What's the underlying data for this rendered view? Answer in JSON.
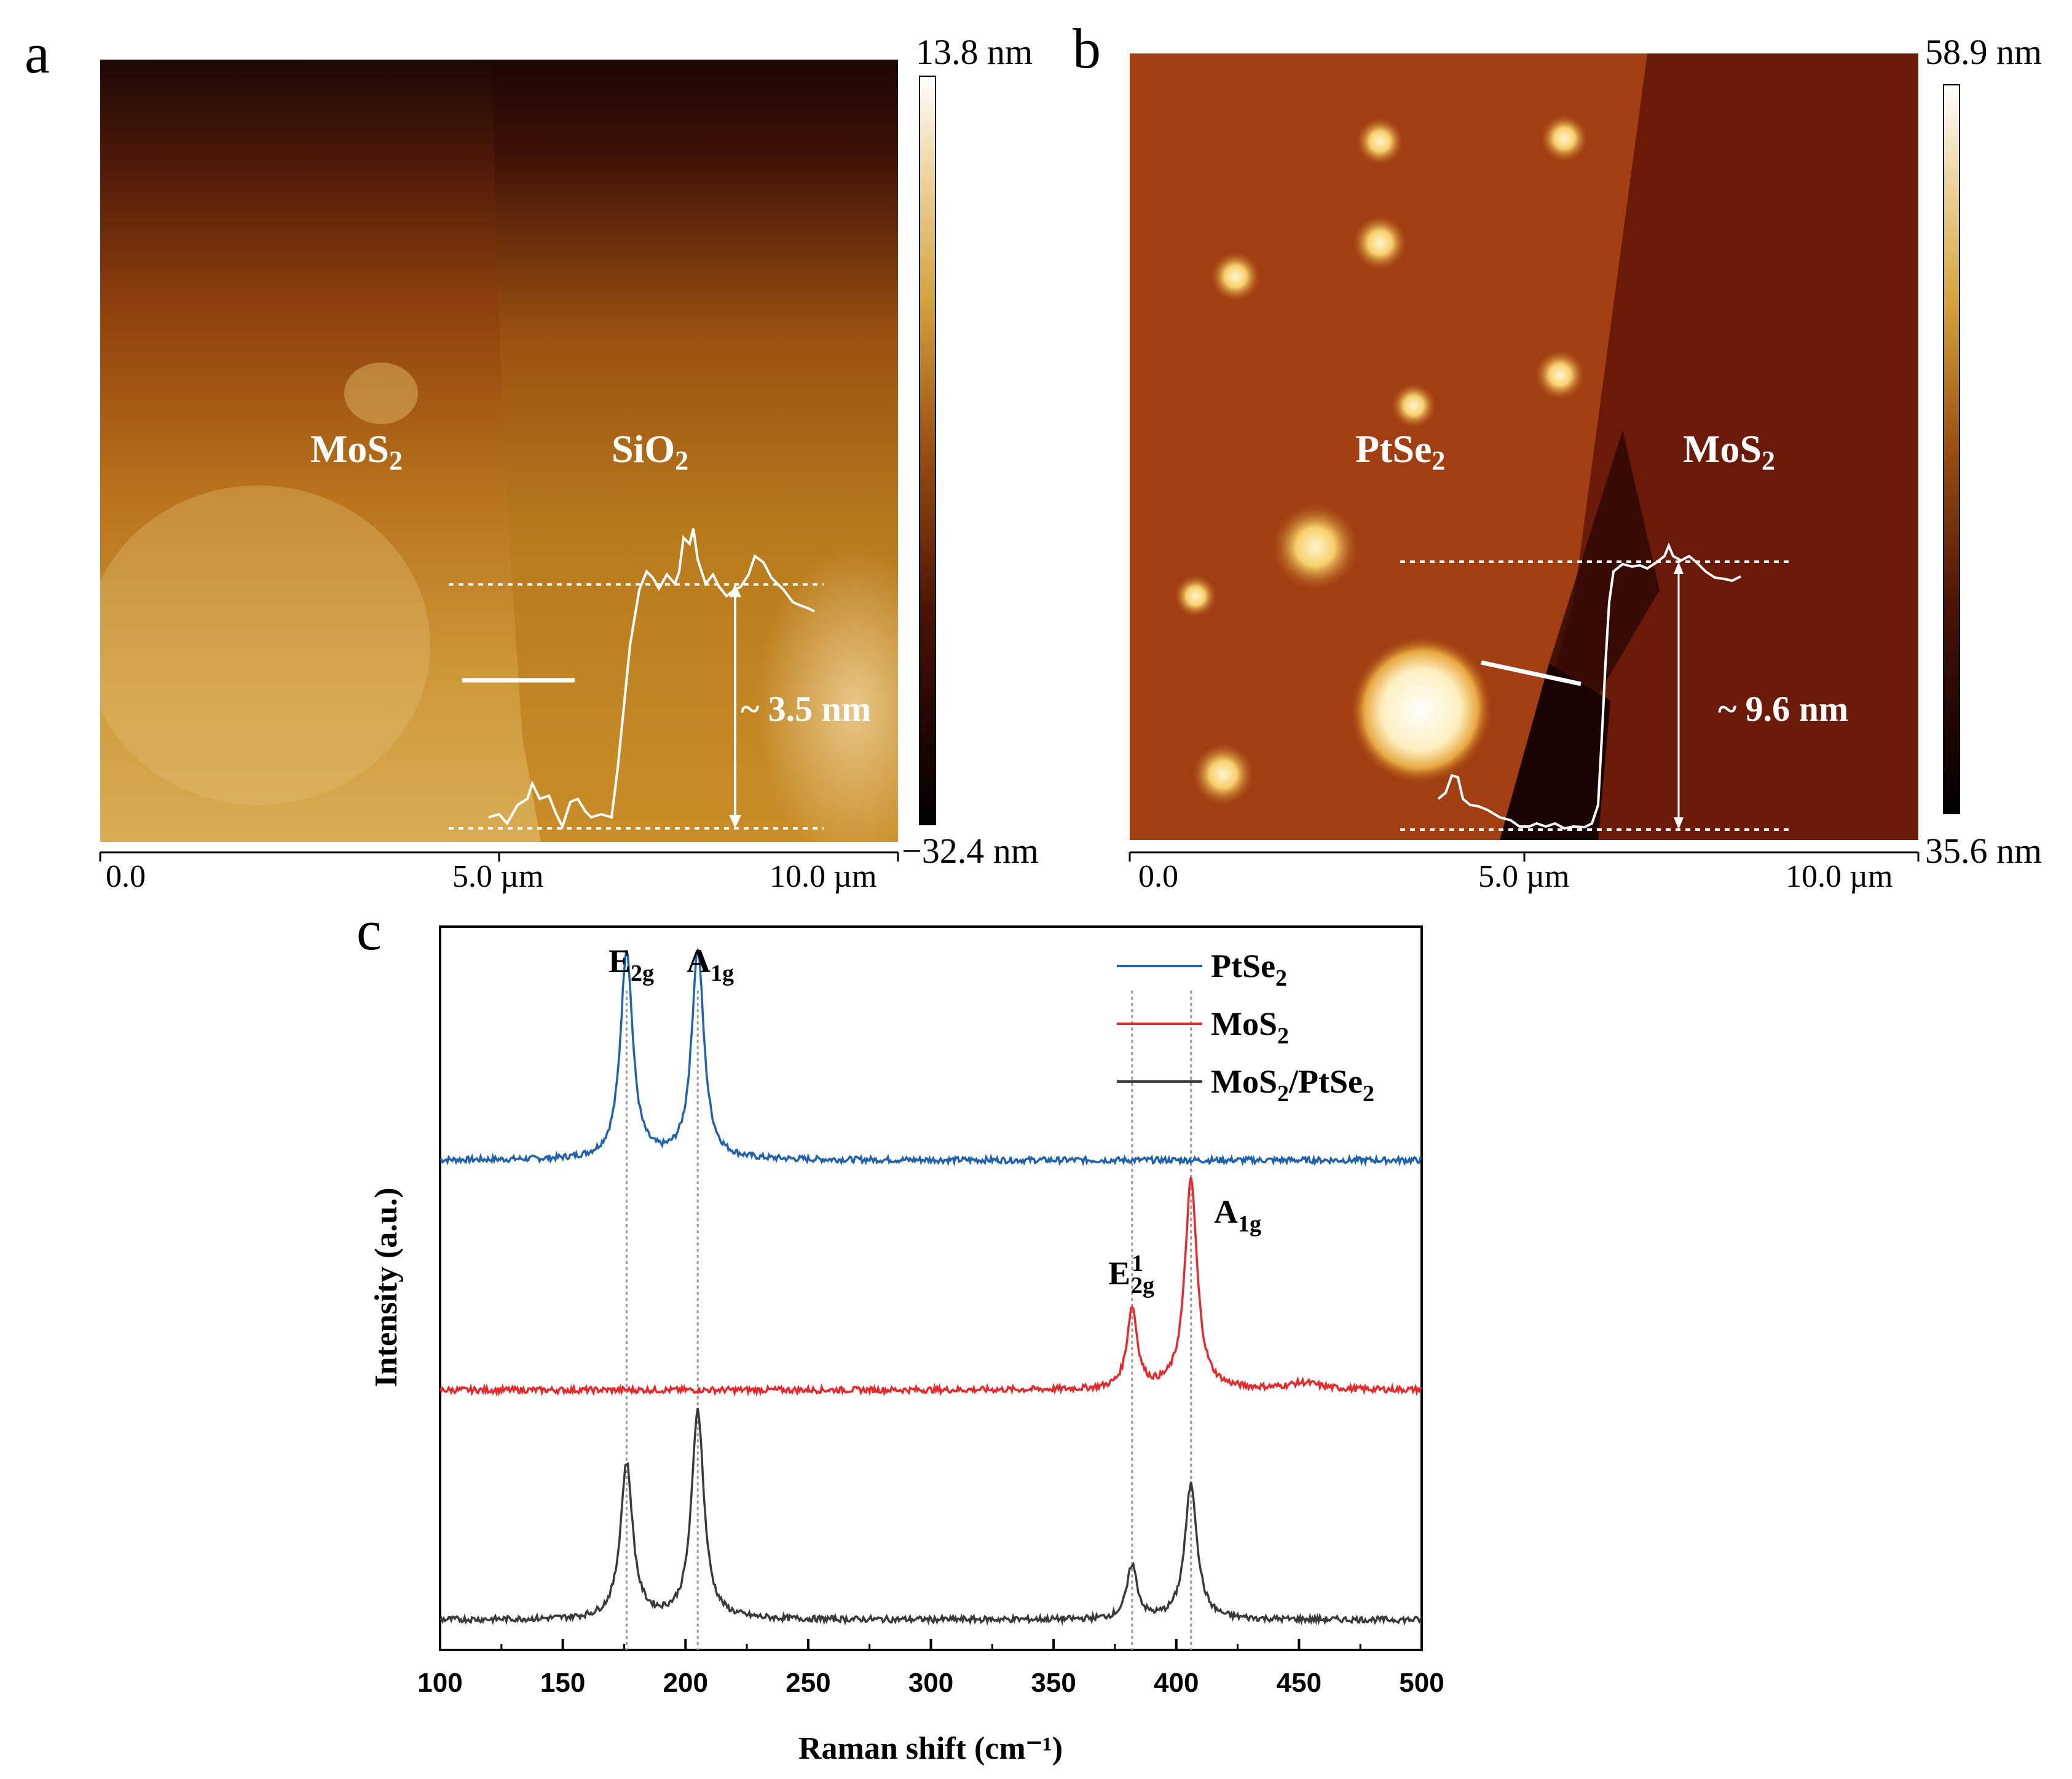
{
  "panel_a": {
    "letter": "a",
    "label_left_main": "MoS",
    "label_left_sub": "2",
    "label_right_main": "SiO",
    "label_right_sub": "2",
    "height_label": "~ 3.5 nm",
    "colorbar_max": "13.8 nm",
    "colorbar_min": "−32.4 nm",
    "axis_ticks": [
      "0.0",
      "5.0 µm",
      "10.0 µm"
    ]
  },
  "panel_b": {
    "letter": "b",
    "label_left_main": "PtSe",
    "label_left_sub": "2",
    "label_right_main": "MoS",
    "label_right_sub": "2",
    "height_label": "~ 9.6 nm",
    "colorbar_max": "58.9 nm",
    "colorbar_min": "35.6 nm",
    "axis_ticks": [
      "0.0",
      "5.0 µm",
      "10.0 µm"
    ]
  },
  "panel_c": {
    "letter": "c",
    "peak_e2g_main": "E",
    "peak_e2g_sub": "2g",
    "peak_a1g_main": "A",
    "peak_a1g_sub": "1g",
    "peak_e12g_main": "E",
    "peak_e12g_sup": "1",
    "peak_e12g_sub": "2g",
    "peak_a1g_mos2_main": "A",
    "peak_a1g_mos2_sub": "1g"
  },
  "colors": {
    "ptse2": "#1f63b0",
    "mos2": "#e8282a",
    "hetero": "#3a3a3a"
  },
  "chart_data": {
    "type": "line",
    "title": "",
    "xlabel": "Raman shift (cm⁻¹)",
    "ylabel": "Intensity (a.u.)",
    "xlim": [
      100,
      500
    ],
    "xticks": [
      100,
      150,
      200,
      250,
      300,
      350,
      400,
      450,
      500
    ],
    "x_tick_labels": [
      "100",
      "150",
      "200",
      "250",
      "300",
      "350",
      "400",
      "450",
      "500"
    ],
    "y_units": "arbitrary, stacked offsets",
    "reference_lines_x": [
      176,
      205,
      382,
      406
    ],
    "series": [
      {
        "name": "PtSe2",
        "legend_main": "PtSe",
        "legend_sub": "2",
        "color": "#1f63b0",
        "baseline": 3.4,
        "peaks": [
          {
            "x": 176,
            "height": 3.1,
            "width": 3.0
          },
          {
            "x": 205,
            "height": 3.1,
            "width": 3.0
          }
        ]
      },
      {
        "name": "MoS2",
        "legend_main": "MoS",
        "legend_sub": "2",
        "color": "#e8282a",
        "baseline": 0.0,
        "peaks": [
          {
            "x": 382,
            "height": 1.2,
            "width": 2.5
          },
          {
            "x": 406,
            "height": 3.1,
            "width": 3.0
          },
          {
            "x": 452,
            "height": 0.1,
            "width": 8.0
          }
        ]
      },
      {
        "name": "MoS2/PtSe2",
        "legend_main": "MoS",
        "legend_sub1": "2",
        "legend_mid": "/PtSe",
        "legend_sub2": "2",
        "color": "#3a3a3a",
        "baseline": -3.4,
        "peaks": [
          {
            "x": 176,
            "height": 2.3,
            "width": 3.0
          },
          {
            "x": 205,
            "height": 3.1,
            "width": 3.0
          },
          {
            "x": 382,
            "height": 0.8,
            "width": 2.5
          },
          {
            "x": 406,
            "height": 2.0,
            "width": 3.0
          }
        ]
      }
    ]
  }
}
